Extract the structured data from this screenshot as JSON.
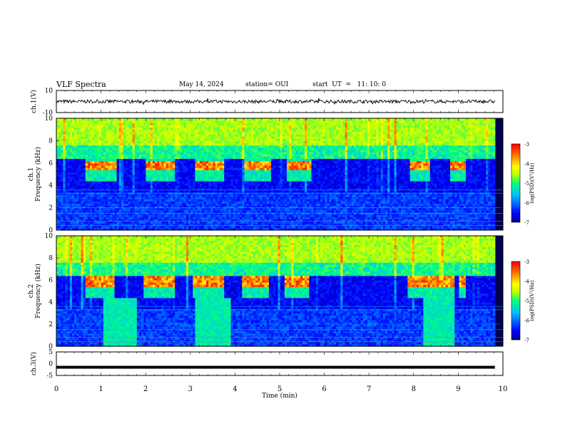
{
  "header": {
    "title": "VLF Spectra",
    "date": "May 14, 2024",
    "station": "station= OUI",
    "start": "start  UT  =   11: 10: 0"
  },
  "chart_data": [
    {
      "type": "line",
      "name": "panel-ch1-waveform",
      "ylabel": "ch.1(V)",
      "ylim": [
        -10,
        10
      ],
      "ytick_labels": [
        "10",
        "-10"
      ],
      "xlim": [
        0,
        10
      ],
      "baseline": 0,
      "amplitude_approx": 1.5
    },
    {
      "type": "heatmap",
      "name": "panel-ch1-spectrogram",
      "ylabel": "ch.1\nFrequency (kHz)",
      "ylim": [
        0,
        10
      ],
      "yticks": [
        0,
        2,
        4,
        6,
        8,
        10
      ],
      "xlim": [
        0,
        10
      ],
      "colorbar": {
        "label": "log(PSD)(V²/Hz)",
        "range": [
          -7,
          -3
        ],
        "ticks": [
          -3,
          -4,
          -5,
          -6,
          -7
        ]
      },
      "chorus_bursts_min": [
        [
          0.65,
          1.35
        ],
        [
          2.0,
          2.65
        ],
        [
          3.1,
          3.75
        ],
        [
          4.2,
          4.8
        ],
        [
          5.15,
          5.7
        ],
        [
          7.9,
          8.35
        ],
        [
          8.8,
          9.15
        ]
      ],
      "chorus_freq_khz": 5.7
    },
    {
      "type": "heatmap",
      "name": "panel-ch2-spectrogram",
      "ylabel": "ch.2\nFrequency (kHz)",
      "ylim": [
        0,
        10
      ],
      "yticks": [
        0,
        2,
        4,
        6,
        8,
        10
      ],
      "xlim": [
        0,
        10
      ],
      "colorbar": {
        "label": "log(PSD)(V²/Hz)",
        "range": [
          -7,
          -3
        ],
        "ticks": [
          -3,
          -4,
          -5,
          -6,
          -7
        ]
      },
      "chorus_bursts_min": [
        [
          0.65,
          1.3
        ],
        [
          1.95,
          2.65
        ],
        [
          3.05,
          3.75
        ],
        [
          4.15,
          4.75
        ],
        [
          5.1,
          5.65
        ],
        [
          7.85,
          8.9
        ],
        [
          9.0,
          9.15
        ]
      ],
      "chorus_freq_khz": 5.8,
      "broadband_intervals_min": [
        [
          1.05,
          1.8
        ],
        [
          3.1,
          3.9
        ],
        [
          8.2,
          8.9
        ]
      ]
    },
    {
      "type": "line",
      "name": "panel-ch3-waveform",
      "ylabel": "ch.3(V)",
      "ylim": [
        -5,
        5
      ],
      "ytick_labels": [
        "5",
        "0",
        "-5"
      ],
      "xlim": [
        0,
        10
      ],
      "baseline": -1.5
    }
  ],
  "xaxis": {
    "label": "Time  (min)",
    "ticks": [
      "0",
      "1",
      "2",
      "3",
      "4",
      "5",
      "6",
      "7",
      "8",
      "9",
      "10"
    ]
  },
  "colors": {
    "colormap": [
      "#000080",
      "#0000ff",
      "#00bfff",
      "#00ff80",
      "#c0ff00",
      "#ffff00",
      "#ff8000",
      "#ff0000"
    ]
  }
}
